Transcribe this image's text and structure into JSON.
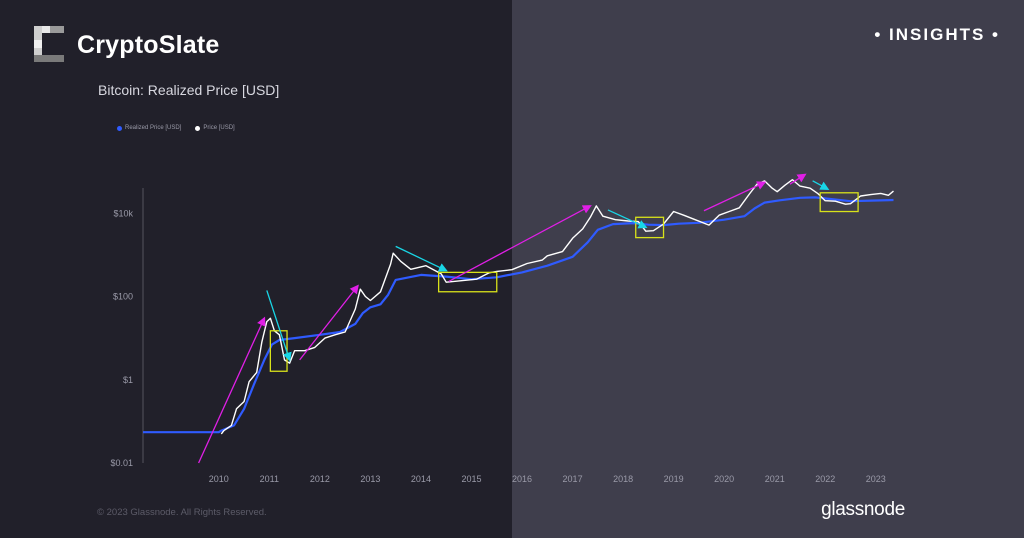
{
  "brand": {
    "name": "CryptoSlate",
    "tag": "• INSIGHTS •"
  },
  "footer": {
    "copyright": "© 2023 Glassnode. All Rights Reserved.",
    "source_logo": "glassnode"
  },
  "colors": {
    "realized": "#2f5bff",
    "price": "#ffffff",
    "pink_arrow": "#e01fe6",
    "cyan_arrow": "#19d6e6",
    "box": "#d8e21a",
    "left_bg": "#21202a",
    "right_bg": "#3f3e4c"
  },
  "chart_data": {
    "type": "line",
    "title": "Bitcoin: Realized Price [USD]",
    "y_scale": "log",
    "ylim": [
      0.01,
      1000000
    ],
    "xlim": [
      2009.0,
      2023.9
    ],
    "x_ticks": [
      "2010",
      "2011",
      "2012",
      "2013",
      "2014",
      "2015",
      "2016",
      "2017",
      "2018",
      "2019",
      "2020",
      "2021",
      "2022",
      "2023"
    ],
    "y_ticks": [
      "$0.01",
      "$1",
      "$100",
      "$10k"
    ],
    "y_tick_values": [
      0.01,
      1,
      100,
      10000
    ],
    "legend": [
      "Realized Price [USD]",
      "Price [USD]"
    ],
    "series": [
      {
        "name": "Realized Price [USD]",
        "points": [
          [
            2009.0,
            0.055
          ],
          [
            2010.5,
            0.055
          ],
          [
            2010.55,
            0.06
          ],
          [
            2010.8,
            0.08
          ],
          [
            2011.0,
            0.2
          ],
          [
            2011.2,
            0.8
          ],
          [
            2011.4,
            3
          ],
          [
            2011.55,
            7
          ],
          [
            2011.7,
            9
          ],
          [
            2012.0,
            10
          ],
          [
            2012.5,
            12
          ],
          [
            2012.9,
            14
          ],
          [
            2013.2,
            22
          ],
          [
            2013.35,
            40
          ],
          [
            2013.5,
            55
          ],
          [
            2013.7,
            65
          ],
          [
            2013.85,
            110
          ],
          [
            2014.0,
            250
          ],
          [
            2014.5,
            330
          ],
          [
            2015.0,
            300
          ],
          [
            2015.5,
            260
          ],
          [
            2016.0,
            290
          ],
          [
            2016.5,
            380
          ],
          [
            2017.0,
            550
          ],
          [
            2017.5,
            900
          ],
          [
            2017.8,
            2000
          ],
          [
            2018.0,
            4000
          ],
          [
            2018.3,
            5500
          ],
          [
            2018.7,
            5800
          ],
          [
            2019.0,
            5300
          ],
          [
            2019.3,
            5200
          ],
          [
            2019.6,
            5600
          ],
          [
            2020.0,
            5900
          ],
          [
            2020.5,
            7000
          ],
          [
            2020.9,
            8500
          ],
          [
            2021.1,
            13000
          ],
          [
            2021.3,
            18000
          ],
          [
            2021.6,
            20500
          ],
          [
            2022.0,
            23500
          ],
          [
            2022.3,
            24000
          ],
          [
            2022.6,
            22000
          ],
          [
            2023.0,
            19500
          ],
          [
            2023.5,
            20300
          ],
          [
            2023.85,
            20800
          ]
        ]
      },
      {
        "name": "Price [USD]",
        "points": [
          [
            2010.55,
            0.05
          ],
          [
            2010.6,
            0.06
          ],
          [
            2010.75,
            0.08
          ],
          [
            2010.85,
            0.2
          ],
          [
            2011.0,
            0.3
          ],
          [
            2011.1,
            0.9
          ],
          [
            2011.25,
            1.5
          ],
          [
            2011.35,
            8
          ],
          [
            2011.45,
            25
          ],
          [
            2011.52,
            30
          ],
          [
            2011.6,
            15
          ],
          [
            2011.7,
            12
          ],
          [
            2011.8,
            3
          ],
          [
            2011.9,
            2.5
          ],
          [
            2012.0,
            5
          ],
          [
            2012.2,
            5
          ],
          [
            2012.4,
            6
          ],
          [
            2012.6,
            10
          ],
          [
            2012.8,
            12
          ],
          [
            2013.0,
            14
          ],
          [
            2013.2,
            50
          ],
          [
            2013.3,
            150
          ],
          [
            2013.4,
            100
          ],
          [
            2013.5,
            80
          ],
          [
            2013.7,
            130
          ],
          [
            2013.9,
            600
          ],
          [
            2013.95,
            1100
          ],
          [
            2014.1,
            700
          ],
          [
            2014.3,
            450
          ],
          [
            2014.6,
            550
          ],
          [
            2014.9,
            350
          ],
          [
            2015.0,
            220
          ],
          [
            2015.3,
            240
          ],
          [
            2015.6,
            260
          ],
          [
            2015.85,
            370
          ],
          [
            2016.0,
            400
          ],
          [
            2016.3,
            440
          ],
          [
            2016.6,
            620
          ],
          [
            2016.9,
            750
          ],
          [
            2017.0,
            950
          ],
          [
            2017.3,
            1200
          ],
          [
            2017.5,
            2500
          ],
          [
            2017.7,
            4200
          ],
          [
            2017.85,
            8000
          ],
          [
            2017.97,
            15000
          ],
          [
            2018.1,
            8500
          ],
          [
            2018.35,
            7000
          ],
          [
            2018.6,
            6500
          ],
          [
            2018.8,
            6300
          ],
          [
            2018.95,
            3700
          ],
          [
            2019.1,
            3800
          ],
          [
            2019.3,
            5500
          ],
          [
            2019.5,
            11000
          ],
          [
            2019.7,
            9000
          ],
          [
            2019.9,
            7200
          ],
          [
            2020.2,
            5200
          ],
          [
            2020.4,
            9000
          ],
          [
            2020.6,
            11000
          ],
          [
            2020.8,
            13500
          ],
          [
            2021.0,
            29000
          ],
          [
            2021.15,
            50000
          ],
          [
            2021.3,
            60000
          ],
          [
            2021.45,
            40000
          ],
          [
            2021.55,
            33000
          ],
          [
            2021.7,
            47000
          ],
          [
            2021.85,
            64000
          ],
          [
            2022.0,
            45000
          ],
          [
            2022.2,
            40000
          ],
          [
            2022.35,
            30000
          ],
          [
            2022.5,
            20000
          ],
          [
            2022.7,
            19500
          ],
          [
            2022.9,
            16500
          ],
          [
            2023.0,
            17000
          ],
          [
            2023.2,
            26000
          ],
          [
            2023.4,
            28000
          ],
          [
            2023.6,
            30000
          ],
          [
            2023.75,
            27000
          ],
          [
            2023.85,
            34000
          ]
        ]
      }
    ],
    "annotations": {
      "pink_arrows": [
        [
          [
            2010.1,
            0.01
          ],
          [
            2011.4,
            30
          ]
        ],
        [
          [
            2012.1,
            3
          ],
          [
            2013.25,
            180
          ]
        ],
        [
          [
            2015.05,
            230
          ],
          [
            2017.85,
            15000
          ]
        ],
        [
          [
            2020.1,
            11500
          ],
          [
            2021.3,
            55000
          ]
        ],
        [
          [
            2021.8,
            50000
          ],
          [
            2022.1,
            85000
          ]
        ]
      ],
      "cyan_arrows": [
        [
          [
            2011.45,
            140
          ],
          [
            2011.9,
            3
          ]
        ],
        [
          [
            2014.0,
            1600
          ],
          [
            2015.0,
            420
          ]
        ],
        [
          [
            2018.2,
            12000
          ],
          [
            2018.95,
            4600
          ]
        ],
        [
          [
            2022.25,
            60000
          ],
          [
            2022.55,
            38000
          ]
        ]
      ],
      "boxes": [
        [
          [
            2011.52,
            2011.85
          ],
          [
            1.6,
            15
          ]
        ],
        [
          [
            2014.85,
            2016.0
          ],
          [
            130,
            380
          ]
        ],
        [
          [
            2018.75,
            2019.3
          ],
          [
            2600,
            8000
          ]
        ],
        [
          [
            2022.4,
            2023.15
          ],
          [
            11000,
            31000
          ]
        ]
      ]
    }
  }
}
